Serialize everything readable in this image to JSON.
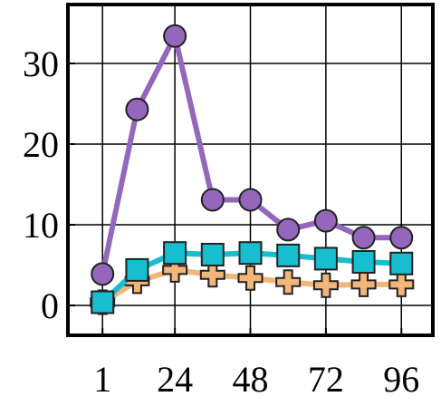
{
  "chart_data": {
    "type": "line",
    "x": [
      1,
      12,
      24,
      36,
      48,
      60,
      72,
      84,
      96
    ],
    "series": [
      {
        "color": "#f2b57a",
        "marker": "plus",
        "values": [
          0.4,
          3.0,
          4.4,
          3.8,
          3.4,
          2.9,
          2.5,
          2.6,
          2.6
        ]
      },
      {
        "color": "#17becf",
        "marker": "square",
        "values": [
          0.4,
          4.4,
          6.5,
          6.3,
          6.5,
          6.2,
          5.8,
          5.4,
          5.2
        ]
      },
      {
        "color": "#9467bd",
        "marker": "circle",
        "values": [
          3.9,
          24.3,
          33.4,
          13.1,
          13.1,
          9.4,
          10.5,
          8.4,
          8.4
        ]
      }
    ],
    "xlim": [
      -10,
      106
    ],
    "xticks": [
      1,
      24,
      48,
      72,
      96
    ],
    "ylim": [
      -3.7,
      37.3
    ],
    "yticks": [
      0,
      10,
      20,
      30
    ],
    "grid": true
  }
}
